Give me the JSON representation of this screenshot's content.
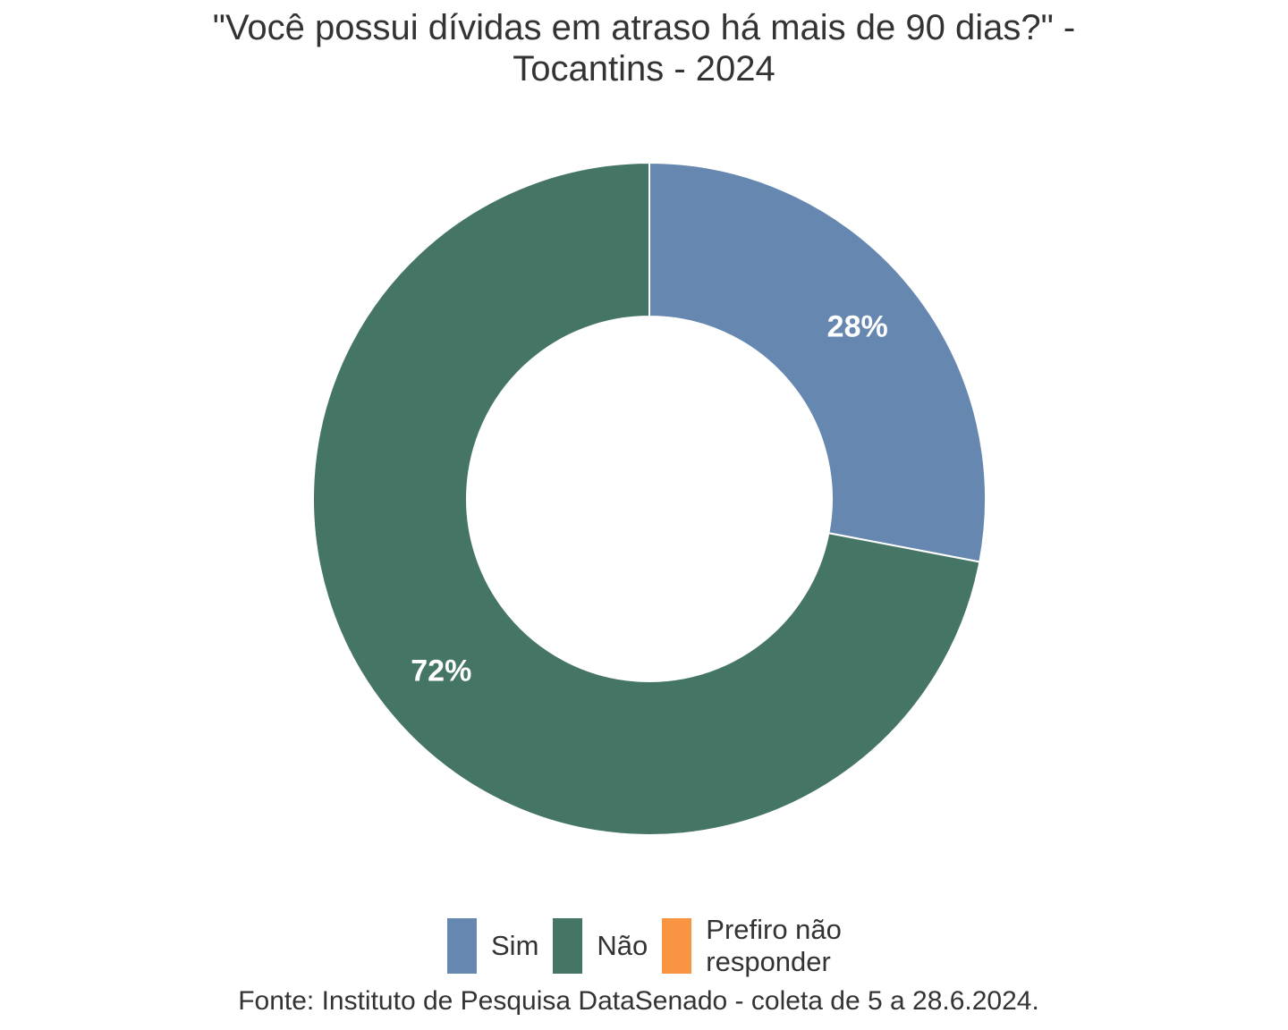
{
  "chart_data": {
    "type": "pie",
    "subtype": "donut",
    "title": "\"Você possui dívidas em atraso há mais de 90 dias?\" -",
    "subtitle": "Tocantins - 2024",
    "categories": [
      "Sim",
      "Não",
      "Prefiro não responder"
    ],
    "values": [
      28,
      72,
      0
    ],
    "labels": [
      "28%",
      "72%",
      ""
    ],
    "colors": [
      "#6688B0",
      "#457564",
      "#F89442"
    ],
    "legend": {
      "position": "bottom",
      "items": [
        {
          "label": "Sim",
          "color": "#6688B0"
        },
        {
          "label": "Não",
          "color": "#457564"
        },
        {
          "label": "Prefiro não\nresponder",
          "color": "#F89442"
        }
      ]
    },
    "caption": "Fonte: Instituto de Pesquisa DataSenado - coleta de 5 a 28.6.2024."
  }
}
